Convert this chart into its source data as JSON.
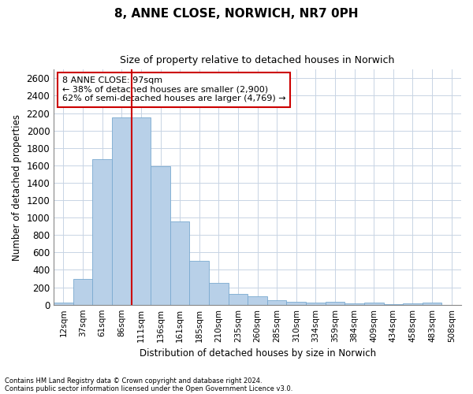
{
  "title": "8, ANNE CLOSE, NORWICH, NR7 0PH",
  "subtitle": "Size of property relative to detached houses in Norwich",
  "xlabel": "Distribution of detached houses by size in Norwich",
  "ylabel": "Number of detached properties",
  "footnote1": "Contains HM Land Registry data © Crown copyright and database right 2024.",
  "footnote2": "Contains public sector information licensed under the Open Government Licence v3.0.",
  "annotation_line1": "8 ANNE CLOSE: 97sqm",
  "annotation_line2": "← 38% of detached houses are smaller (2,900)",
  "annotation_line3": "62% of semi-detached houses are larger (4,769) →",
  "bar_color": "#b8d0e8",
  "bar_edge_color": "#7aaad0",
  "vline_color": "#cc0000",
  "annotation_box_edgecolor": "#cc0000",
  "grid_color": "#c8d4e4",
  "categories": [
    "12sqm",
    "37sqm",
    "61sqm",
    "86sqm",
    "111sqm",
    "136sqm",
    "161sqm",
    "185sqm",
    "210sqm",
    "235sqm",
    "260sqm",
    "285sqm",
    "310sqm",
    "334sqm",
    "359sqm",
    "384sqm",
    "409sqm",
    "434sqm",
    "458sqm",
    "483sqm",
    "508sqm"
  ],
  "values": [
    25,
    300,
    1670,
    2150,
    2150,
    1590,
    960,
    500,
    250,
    120,
    100,
    50,
    35,
    20,
    30,
    15,
    20,
    10,
    15,
    25,
    0
  ],
  "ylim": [
    0,
    2700
  ],
  "yticks": [
    0,
    200,
    400,
    600,
    800,
    1000,
    1200,
    1400,
    1600,
    1800,
    2000,
    2200,
    2400,
    2600
  ],
  "vline_x_index": 3.5,
  "figsize": [
    6.0,
    5.0
  ],
  "dpi": 100
}
